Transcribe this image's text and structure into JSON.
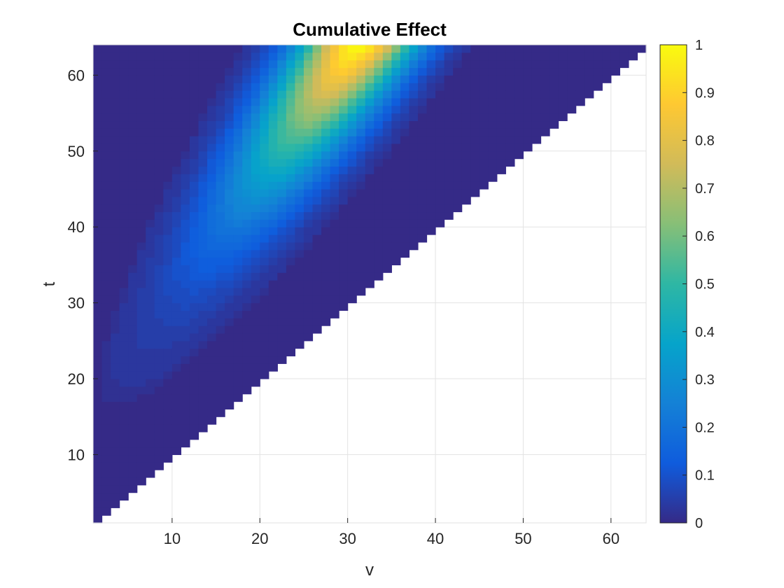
{
  "chart_data": {
    "type": "heatmap",
    "title": "Cumulative Effect",
    "xlabel": "v",
    "ylabel": "t",
    "xlim": [
      1,
      64
    ],
    "ylim": [
      1,
      64
    ],
    "x_ticks": [
      10,
      20,
      30,
      40,
      50,
      60
    ],
    "y_ticks": [
      10,
      20,
      30,
      40,
      50,
      60
    ],
    "grid": true,
    "masked_region": "v > t (upper-left triangle only is defined)",
    "colormap": "parula",
    "colormap_stops": [
      "#352a87",
      "#0f5cdd",
      "#1481d6",
      "#06a4ca",
      "#2eb7a4",
      "#87bf77",
      "#d1bb59",
      "#fec832",
      "#f9fb0e"
    ],
    "colorbar": {
      "min": 0,
      "max": 1,
      "ticks": [
        "0",
        "0.1",
        "0.2",
        "0.3",
        "0.4",
        "0.5",
        "0.6",
        "0.7",
        "0.8",
        "0.9",
        "1"
      ]
    },
    "peak": {
      "v": 31,
      "t": 64,
      "value": 1.0
    },
    "value_model": {
      "description": "approximate field sampled on integer grid, values normalized 0-1",
      "samples": [
        {
          "v": 30,
          "t": 62,
          "value": 0.9
        },
        {
          "v": 24,
          "t": 52,
          "value": 0.7
        },
        {
          "v": 15,
          "t": 42,
          "value": 0.4
        },
        {
          "v": 8,
          "t": 38,
          "value": 0.15
        },
        {
          "v": 4,
          "t": 28,
          "value": 0.03
        },
        {
          "v": 40,
          "t": 50,
          "value": 0.02
        }
      ]
    }
  }
}
